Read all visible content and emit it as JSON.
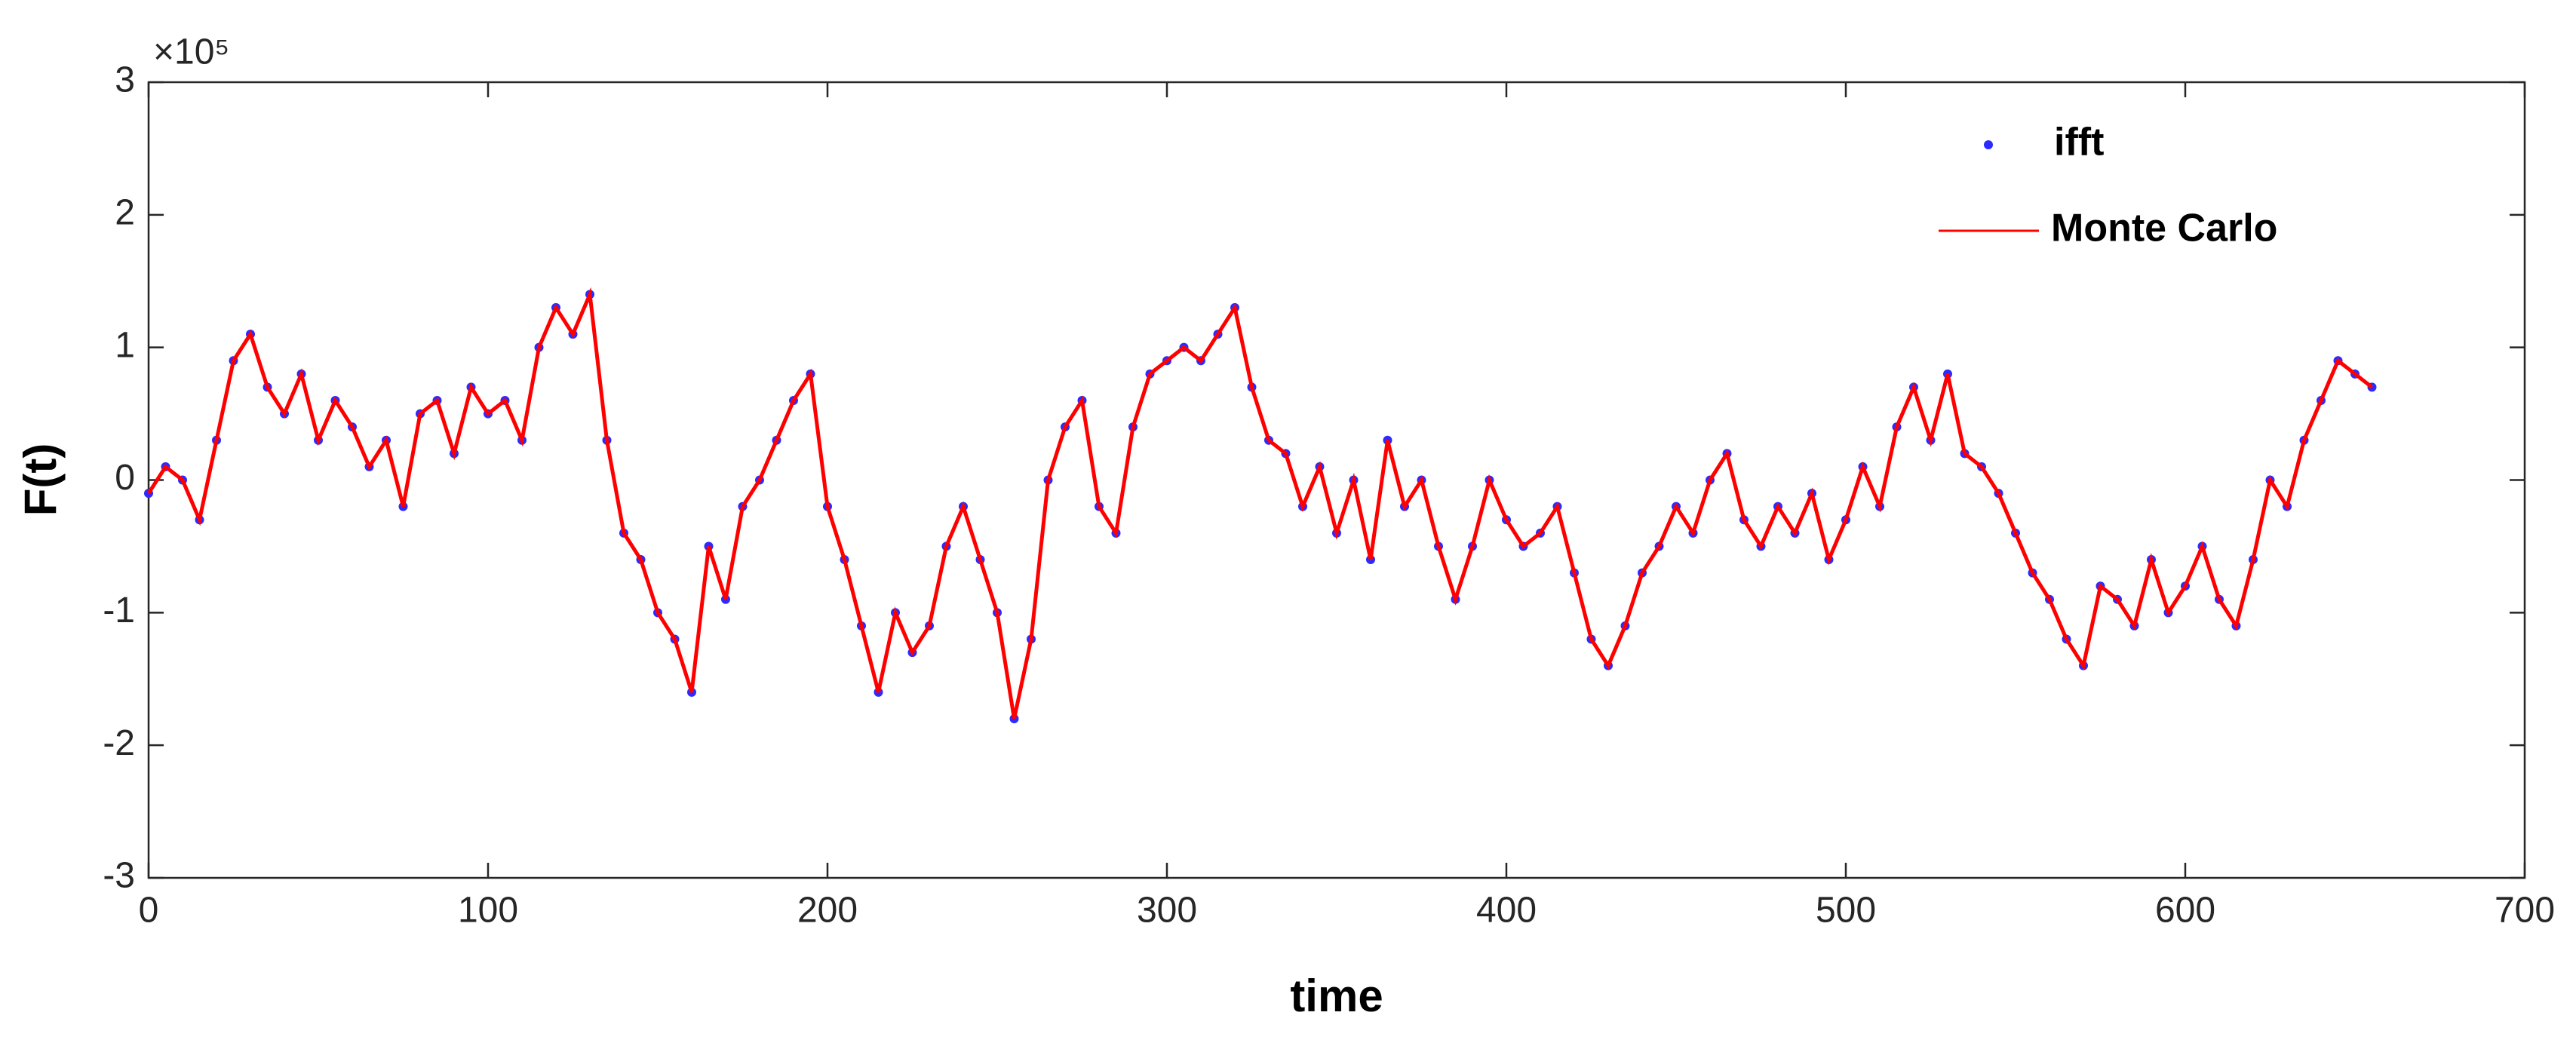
{
  "chart_data": {
    "type": "line",
    "xlabel": "time",
    "ylabel": "F(t)",
    "y_multiplier": "×10⁵",
    "xlim": [
      0,
      700
    ],
    "xticks": [
      0,
      100,
      200,
      300,
      400,
      500,
      600,
      700
    ],
    "ylim": [
      -3,
      3
    ],
    "yticks": [
      -3,
      -2,
      -1,
      0,
      1,
      2,
      3
    ],
    "legend": "top-right",
    "x": [
      0,
      5,
      10,
      15,
      20,
      25,
      30,
      35,
      40,
      45,
      50,
      55,
      60,
      65,
      70,
      75,
      80,
      85,
      90,
      95,
      100,
      105,
      110,
      115,
      120,
      125,
      130,
      135,
      140,
      145,
      150,
      155,
      160,
      165,
      170,
      175,
      180,
      185,
      190,
      195,
      200,
      205,
      210,
      215,
      220,
      225,
      230,
      235,
      240,
      245,
      250,
      255,
      260,
      265,
      270,
      275,
      280,
      285,
      290,
      295,
      300,
      305,
      310,
      315,
      320,
      325,
      330,
      335,
      340,
      345,
      350,
      355,
      360,
      365,
      370,
      375,
      380,
      385,
      390,
      395,
      400,
      405,
      410,
      415,
      420,
      425,
      430,
      435,
      440,
      445,
      450,
      455,
      460,
      465,
      470,
      475,
      480,
      485,
      490,
      495,
      500,
      505,
      510,
      515,
      520,
      525,
      530,
      535,
      540,
      545,
      550,
      555,
      560,
      565,
      570,
      575,
      580,
      585,
      590,
      595,
      600,
      605,
      610,
      615,
      620,
      625,
      630,
      635,
      640,
      645,
      650,
      655
    ],
    "series": [
      {
        "name": "ifft",
        "color": "#2b2bff",
        "style": "dots",
        "values": [
          -0.1,
          0.1,
          0.0,
          -0.3,
          0.3,
          0.9,
          1.1,
          0.7,
          0.5,
          0.8,
          0.3,
          0.6,
          0.4,
          0.1,
          0.3,
          -0.2,
          0.5,
          0.6,
          0.2,
          0.7,
          0.5,
          0.6,
          0.3,
          1.0,
          1.3,
          1.1,
          1.4,
          0.3,
          -0.4,
          -0.6,
          -1.0,
          -1.2,
          -1.6,
          -0.5,
          -0.9,
          -0.2,
          0.0,
          0.3,
          0.6,
          0.8,
          -0.2,
          -0.6,
          -1.1,
          -1.6,
          -1.0,
          -1.3,
          -1.1,
          -0.5,
          -0.2,
          -0.6,
          -1.0,
          -1.8,
          -1.2,
          0.0,
          0.4,
          0.6,
          -0.2,
          -0.4,
          0.4,
          0.8,
          0.9,
          1.0,
          0.9,
          1.1,
          1.3,
          0.7,
          0.3,
          0.2,
          -0.2,
          0.1,
          -0.4,
          0.0,
          -0.6,
          0.3,
          -0.2,
          0.0,
          -0.5,
          -0.9,
          -0.5,
          0.0,
          -0.3,
          -0.5,
          -0.4,
          -0.2,
          -0.7,
          -1.2,
          -1.4,
          -1.1,
          -0.7,
          -0.5,
          -0.2,
          -0.4,
          0.0,
          0.2,
          -0.3,
          -0.5,
          -0.2,
          -0.4,
          -0.1,
          -0.6,
          -0.3,
          0.1,
          -0.2,
          0.4,
          0.7,
          0.3,
          0.8,
          0.2,
          0.1,
          -0.1,
          -0.4,
          -0.7,
          -0.9,
          -1.2,
          -1.4,
          -0.8,
          -0.9,
          -1.1,
          -0.6,
          -1.0,
          -0.8,
          -0.5,
          -0.9,
          -1.1,
          -0.6,
          0.0,
          -0.2,
          0.3,
          0.6,
          0.9,
          0.8,
          0.7
        ]
      },
      {
        "name": "Monte Carlo",
        "color": "#ff0000",
        "style": "line",
        "values": [
          -0.1,
          0.1,
          0.0,
          -0.3,
          0.3,
          0.9,
          1.1,
          0.7,
          0.5,
          0.8,
          0.3,
          0.6,
          0.4,
          0.1,
          0.3,
          -0.2,
          0.5,
          0.6,
          0.2,
          0.7,
          0.5,
          0.6,
          0.3,
          1.0,
          1.3,
          1.1,
          1.4,
          0.3,
          -0.4,
          -0.6,
          -1.0,
          -1.2,
          -1.6,
          -0.5,
          -0.9,
          -0.2,
          0.0,
          0.3,
          0.6,
          0.8,
          -0.2,
          -0.6,
          -1.1,
          -1.6,
          -1.0,
          -1.3,
          -1.1,
          -0.5,
          -0.2,
          -0.6,
          -1.0,
          -1.8,
          -1.2,
          0.0,
          0.4,
          0.6,
          -0.2,
          -0.4,
          0.4,
          0.8,
          0.9,
          1.0,
          0.9,
          1.1,
          1.3,
          0.7,
          0.3,
          0.2,
          -0.2,
          0.1,
          -0.4,
          0.0,
          -0.6,
          0.3,
          -0.2,
          0.0,
          -0.5,
          -0.9,
          -0.5,
          0.0,
          -0.3,
          -0.5,
          -0.4,
          -0.2,
          -0.7,
          -1.2,
          -1.4,
          -1.1,
          -0.7,
          -0.5,
          -0.2,
          -0.4,
          0.0,
          0.2,
          -0.3,
          -0.5,
          -0.2,
          -0.4,
          -0.1,
          -0.6,
          -0.3,
          0.1,
          -0.2,
          0.4,
          0.7,
          0.3,
          0.8,
          0.2,
          0.1,
          -0.1,
          -0.4,
          -0.7,
          -0.9,
          -1.2,
          -1.4,
          -0.8,
          -0.9,
          -1.1,
          -0.6,
          -1.0,
          -0.8,
          -0.5,
          -0.9,
          -1.1,
          -0.6,
          0.0,
          -0.2,
          0.3,
          0.6,
          0.9,
          0.8,
          0.7
        ]
      }
    ]
  }
}
